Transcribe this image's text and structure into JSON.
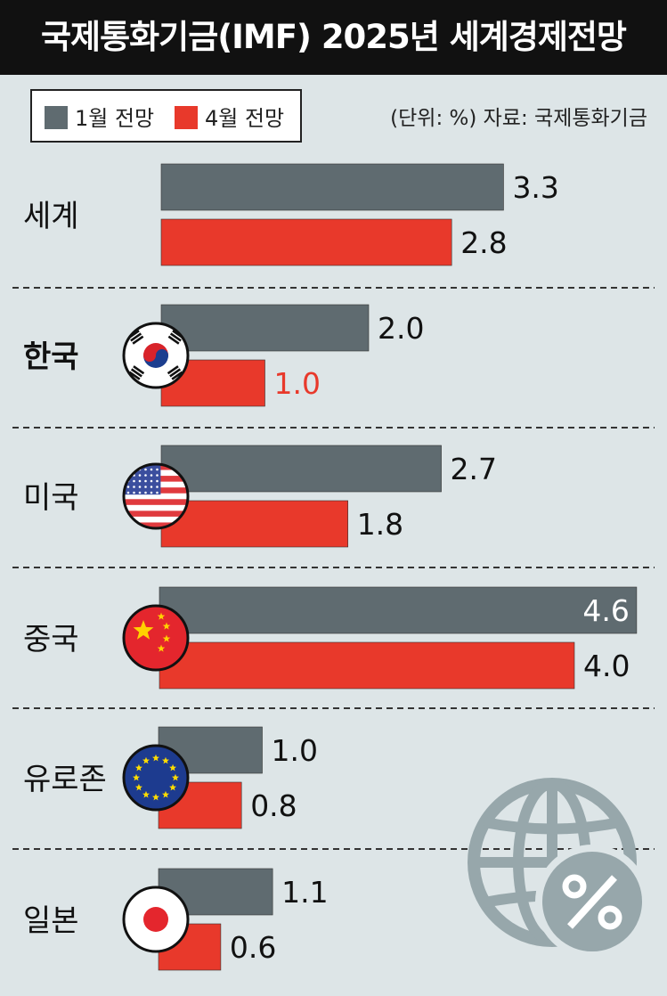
{
  "title": "국제통화기금(IMF) 2025년 세계경제전망",
  "source_note": "(단위: %) 자료: 국제통화기금",
  "colors": {
    "january": "#5f6b70",
    "april": "#e8392b",
    "background": "#dde5e7",
    "highlight_text": "#e8392b"
  },
  "chart_data": {
    "type": "bar",
    "orientation": "horizontal",
    "title": "국제통화기금(IMF) 2025년 세계경제전망",
    "unit": "%",
    "categories": [
      "세계",
      "한국",
      "미국",
      "중국",
      "유로존",
      "일본"
    ],
    "series": [
      {
        "name": "1월 전망",
        "values": [
          3.3,
          2.0,
          2.7,
          4.6,
          1.0,
          1.1
        ]
      },
      {
        "name": "4월 전망",
        "values": [
          2.8,
          1.0,
          1.8,
          4.0,
          0.8,
          0.6
        ]
      }
    ],
    "value_labels": [
      [
        "3.3",
        "2.0",
        "2.7",
        "4.6",
        "1.0",
        "1.1"
      ],
      [
        "2.8",
        "1.0",
        "1.8",
        "4.0",
        "0.8",
        "0.6"
      ]
    ],
    "flags": [
      null,
      "korea-flag-icon",
      "usa-flag-icon",
      "china-flag-icon",
      "eu-flag-icon",
      "japan-flag-icon"
    ],
    "legend_position": "top-left",
    "grid": false
  },
  "decoration": {
    "icon": "globe-percent-icon"
  }
}
